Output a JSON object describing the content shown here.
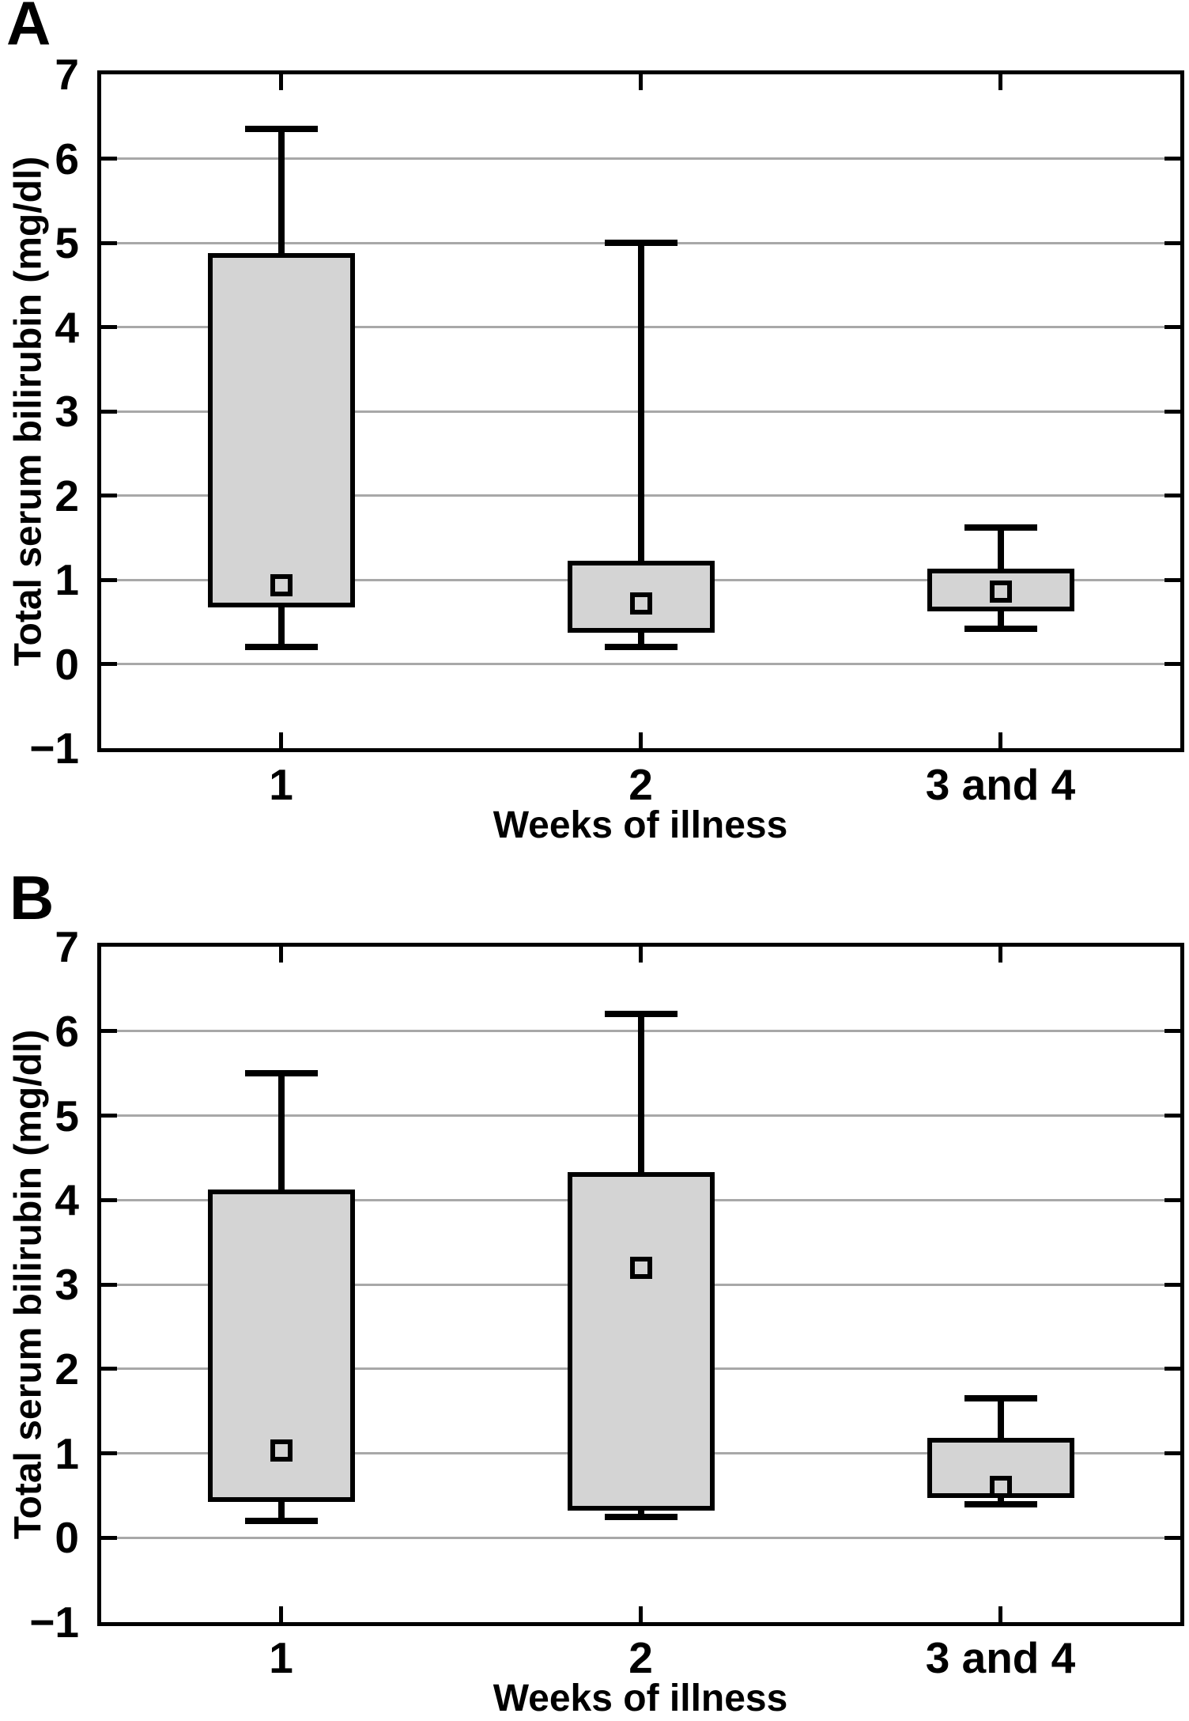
{
  "colors": {
    "box_fill": "#d4d4d4",
    "line": "#000000",
    "gridline": "#a8a8a8",
    "background": "#ffffff"
  },
  "chart_data": [
    {
      "type": "box",
      "panel": "A",
      "xlabel": "Weeks of illness",
      "ylabel": "Total serum bilirubin (mg/dl)",
      "ylim": [
        -1,
        7
      ],
      "ytick_step": 1,
      "ytick_labels": [
        "7",
        "6",
        "5",
        "4",
        "3",
        "2",
        "1",
        "0",
        "−1"
      ],
      "grid": "horizontal",
      "marker": "mean-open-square",
      "categories": [
        "1",
        "2",
        "3 and 4"
      ],
      "series": [
        {
          "category": "1",
          "whisker_low": 0.2,
          "q1": 0.7,
          "mean": 0.93,
          "q3": 4.85,
          "whisker_high": 6.35
        },
        {
          "category": "2",
          "whisker_low": 0.2,
          "q1": 0.4,
          "mean": 0.72,
          "q3": 1.2,
          "whisker_high": 5.0
        },
        {
          "category": "3 and 4",
          "whisker_low": 0.42,
          "q1": 0.65,
          "mean": 0.86,
          "q3": 1.1,
          "whisker_high": 1.62
        }
      ]
    },
    {
      "type": "box",
      "panel": "B",
      "xlabel": "Weeks of illness",
      "ylabel": "Total serum bilirubin (mg/dl)",
      "ylim": [
        -1,
        7
      ],
      "ytick_step": 1,
      "ytick_labels": [
        "7",
        "6",
        "5",
        "4",
        "3",
        "2",
        "1",
        "0",
        "−1"
      ],
      "grid": "horizontal",
      "marker": "mean-open-square",
      "categories": [
        "1",
        "2",
        "3 and 4"
      ],
      "series": [
        {
          "category": "1",
          "whisker_low": 0.2,
          "q1": 0.45,
          "mean": 1.03,
          "q3": 4.1,
          "whisker_high": 5.5
        },
        {
          "category": "2",
          "whisker_low": 0.25,
          "q1": 0.35,
          "mean": 3.2,
          "q3": 4.3,
          "whisker_high": 6.2
        },
        {
          "category": "3 and 4",
          "whisker_low": 0.4,
          "q1": 0.5,
          "mean": 0.6,
          "q3": 1.15,
          "whisker_high": 1.65
        }
      ]
    }
  ]
}
